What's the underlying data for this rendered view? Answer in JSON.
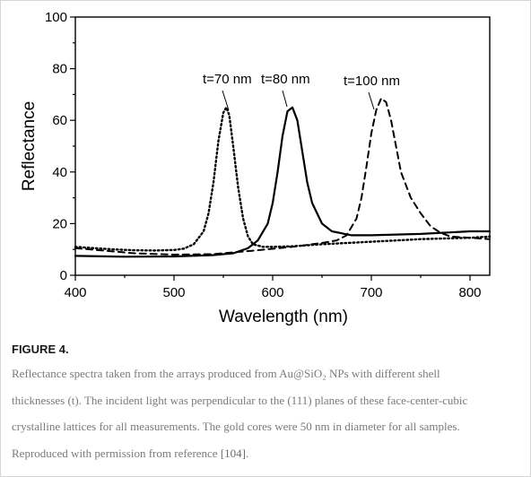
{
  "chart_data": {
    "type": "line",
    "xlabel": "Wavelength (nm)",
    "ylabel": "Reflectance",
    "xlim": [
      400,
      820
    ],
    "ylim": [
      0,
      100
    ],
    "xticks": [
      "400",
      "500",
      "600",
      "700",
      "800"
    ],
    "yticks": [
      "0",
      "20",
      "40",
      "60",
      "80",
      "100"
    ],
    "grid": false,
    "legend": "none",
    "series": [
      {
        "name": "t=70 nm",
        "style": "dotted",
        "x": [
          400,
          420,
          440,
          460,
          480,
          500,
          510,
          520,
          530,
          535,
          540,
          545,
          550,
          553,
          556,
          560,
          565,
          570,
          575,
          580,
          590,
          600,
          620,
          650,
          700,
          750,
          800,
          820
        ],
        "y": [
          11,
          10.5,
          10,
          9.7,
          9.6,
          9.8,
          10.3,
          12,
          17,
          24,
          36,
          52,
          63,
          65,
          62,
          50,
          34,
          22,
          15,
          12,
          11,
          11,
          11.2,
          12,
          13,
          14,
          14.5,
          15
        ]
      },
      {
        "name": "t=80 nm",
        "style": "solid",
        "x": [
          400,
          450,
          500,
          540,
          560,
          575,
          585,
          595,
          600,
          605,
          610,
          615,
          620,
          625,
          630,
          635,
          640,
          650,
          660,
          680,
          700,
          750,
          800,
          820
        ],
        "y": [
          7.5,
          7.2,
          7.3,
          7.8,
          8.5,
          10.5,
          13.5,
          20,
          28,
          40,
          54,
          63.5,
          65,
          60,
          48,
          36,
          28,
          20,
          17,
          15.5,
          15.5,
          16,
          17,
          17
        ]
      },
      {
        "name": "t=100 nm",
        "style": "dashed",
        "x": [
          400,
          430,
          460,
          500,
          540,
          580,
          620,
          650,
          665,
          675,
          685,
          690,
          695,
          700,
          705,
          710,
          715,
          720,
          725,
          730,
          740,
          750,
          760,
          770,
          780,
          800,
          820
        ],
        "y": [
          10.5,
          9.5,
          8.5,
          8,
          8.2,
          9.5,
          11,
          12.5,
          13.5,
          15.5,
          22,
          30,
          42,
          55,
          64,
          68.5,
          67,
          60,
          50,
          40,
          30,
          24,
          19,
          16.5,
          15,
          14.5,
          14
        ]
      }
    ],
    "annotations": [
      {
        "text": "t=70 nm"
      },
      {
        "text": "t=80 nm"
      },
      {
        "text": "t=100 nm"
      }
    ]
  },
  "figure": {
    "label": "FIGURE 4.",
    "caption_lines": [
      "Reflectance spectra taken from the arrays produced from Au@SiO₂ NPs with different shell",
      "thicknesses (t). The incident light was perpendicular to the (111) planes of these face-center-cubic",
      "crystalline lattices for all measurements. The gold cores were 50 nm in diameter for all samples.",
      "Reproduced with permission from reference "
    ],
    "citation": "[104]",
    "caption_end": "."
  }
}
